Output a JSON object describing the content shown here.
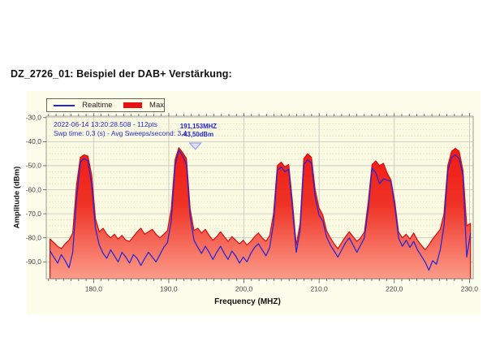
{
  "document": {
    "title": "DZ_2726_01: Beispiel der DAB+ Verstärkung:"
  },
  "chart_data": {
    "type": "area",
    "title": "",
    "xlabel": "Frequency (MHZ)",
    "ylabel": "Amplitude (dBm)",
    "xlim": [
      173.7,
      230.5
    ],
    "ylim": [
      -97,
      -29.4
    ],
    "x_start": 174.2,
    "x_step": 0.504,
    "points_per_sweep": 112,
    "grid": {
      "major": true,
      "minor_dotted": true,
      "x_minor_step": 1,
      "y_minor_step": 2.5
    },
    "legend_position": "top-left",
    "x_major_ticks": {
      "values": [
        180,
        190,
        200,
        210,
        220,
        230
      ],
      "labels": [
        "180,0",
        "190,0",
        "200,0",
        "210,0",
        "220,0",
        "230,0"
      ]
    },
    "y_major_ticks": {
      "values": [
        -30,
        -40,
        -50,
        -60,
        -70,
        -80,
        -90
      ],
      "labels": [
        "-30,0",
        "-40,0",
        "-50,0",
        "-60,0",
        "-70,0",
        "-80,0",
        "-90,0"
      ]
    },
    "annotations": [
      "2022-06-14 13:20:28.508 - 112pts",
      "Swp time: 0,3 (s) - Avg Sweeps/second: 3,4"
    ],
    "marker": {
      "freq_mhz": 191.153,
      "amp_dbm": -43.5,
      "freq_label": "191,153MHZ",
      "amp_label": "-43,50dBm"
    },
    "series": [
      {
        "name": "Realtime",
        "type": "line",
        "color": "#2626d6",
        "values": [
          -85.5,
          -88,
          -90.5,
          -87,
          -89.5,
          -92.5,
          -86,
          -64,
          -48.5,
          -47,
          -48,
          -58,
          -76,
          -83,
          -86.5,
          -88.5,
          -85,
          -87.5,
          -90,
          -86,
          -88,
          -90.5,
          -87,
          -88.5,
          -91.5,
          -88.5,
          -86,
          -88,
          -90,
          -87,
          -84,
          -82,
          -73,
          -50,
          -43.5,
          -46,
          -49.5,
          -71,
          -81,
          -84,
          -86.5,
          -83.5,
          -86,
          -89,
          -86,
          -83.5,
          -86.5,
          -89,
          -85.5,
          -87.5,
          -90.5,
          -88,
          -90,
          -86.5,
          -84,
          -82.5,
          -85,
          -87.5,
          -84,
          -74,
          -52,
          -50.5,
          -52.5,
          -51.5,
          -68,
          -86,
          -77,
          -49.5,
          -47.5,
          -49,
          -63,
          -70.5,
          -73,
          -79.5,
          -83,
          -85.5,
          -88,
          -85,
          -82,
          -80,
          -83,
          -86,
          -83,
          -80,
          -68,
          -51,
          -53,
          -57.5,
          -55.5,
          -56,
          -56.5,
          -67,
          -80,
          -83.5,
          -81,
          -84,
          -81.5,
          -85,
          -87.5,
          -90,
          -93.5,
          -89.5,
          -91,
          -85,
          -75,
          -52,
          -46.5,
          -45.5,
          -47,
          -54,
          -88,
          -78
        ]
      },
      {
        "name": "Max",
        "type": "area",
        "color": "#d40f0f",
        "fill_top": "#f20d0d",
        "fill_mid": "#ef3326",
        "fill_bottom": "#fc9c8a",
        "values": [
          -80.5,
          -82,
          -83.5,
          -84.5,
          -82.5,
          -81,
          -78,
          -58,
          -46.5,
          -45.5,
          -46,
          -54,
          -72,
          -77.5,
          -76,
          -78.5,
          -80,
          -78.5,
          -80.5,
          -79,
          -81,
          -81.5,
          -79.5,
          -77.5,
          -76,
          -78.5,
          -77.5,
          -76.5,
          -78.5,
          -80,
          -78.5,
          -77,
          -68,
          -47.5,
          -42.5,
          -44.5,
          -47,
          -68,
          -77,
          -76,
          -78,
          -76.5,
          -79,
          -81,
          -79.5,
          -77.5,
          -79.5,
          -81.5,
          -79.5,
          -81,
          -82.5,
          -81,
          -83,
          -81.5,
          -79.5,
          -78,
          -80,
          -81.5,
          -79,
          -70,
          -50,
          -48.5,
          -50.5,
          -49.5,
          -65,
          -83,
          -74,
          -47,
          -45,
          -46.5,
          -60,
          -67.5,
          -70.5,
          -77,
          -80,
          -82.5,
          -84.5,
          -82,
          -79.5,
          -77.5,
          -79.5,
          -81.5,
          -80,
          -77.5,
          -65,
          -49.5,
          -48,
          -50,
          -49,
          -53,
          -56,
          -65,
          -77.5,
          -80,
          -78.5,
          -80.5,
          -78,
          -81,
          -83,
          -85,
          -83,
          -80.5,
          -78.5,
          -76.5,
          -70,
          -50,
          -44,
          -42.8,
          -44,
          -52,
          -75,
          -74
        ]
      }
    ]
  },
  "colors": {
    "page_bg": "#ffffff",
    "figure_bg": "#fdfdec",
    "plot_bg": "#fafae3",
    "grid_major": "#c4c4bc",
    "grid_minor": "#c9c9b4",
    "plot_border": "#9a9a93",
    "tick": "#555555",
    "tick_label": "#444444",
    "annotation_blue": "#2a2ac9",
    "marker_blue": "#1f1fd0",
    "realtime_line": "#2626d6",
    "max_outline": "#d40f0f"
  }
}
